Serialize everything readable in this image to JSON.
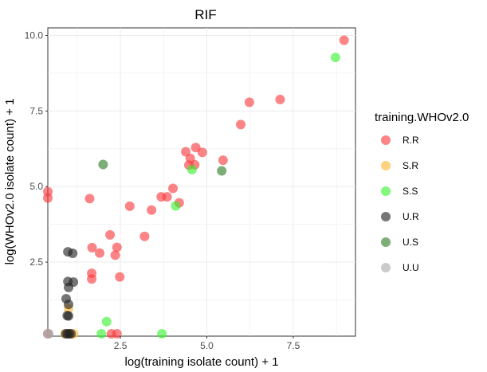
{
  "chart_data": {
    "type": "scatter",
    "title": "RIF",
    "xlabel": "log(training isolate count) + 1",
    "ylabel": "log(WHOv2.0 isolate count) + 1",
    "xlim": [
      0.4,
      9.3
    ],
    "ylim": [
      0.05,
      10.25
    ],
    "x_ticks": [
      2.5,
      5.0,
      7.5
    ],
    "y_ticks": [
      2.5,
      5.0,
      7.5,
      10.0
    ],
    "x_tick_labels": [
      "2.5",
      "5.0",
      "7.5"
    ],
    "y_tick_labels": [
      "2.5",
      "5.0",
      "7.5",
      "10.0"
    ],
    "grid": true,
    "legend": {
      "title": "training.WHOv2.0",
      "placement": "right"
    },
    "series": [
      {
        "name": "R.R",
        "color": "#F8393B",
        "points": [
          [
            0.4,
            4.83
          ],
          [
            0.4,
            4.62
          ],
          [
            1.61,
            4.6
          ],
          [
            2.77,
            4.35
          ],
          [
            3.4,
            4.22
          ],
          [
            3.68,
            4.66
          ],
          [
            3.85,
            4.66
          ],
          [
            4.2,
            4.46
          ],
          [
            4.02,
            4.94
          ],
          [
            1.68,
            2.98
          ],
          [
            1.9,
            2.8
          ],
          [
            2.2,
            3.4
          ],
          [
            2.35,
            2.73
          ],
          [
            2.4,
            2.99
          ],
          [
            2.48,
            2.01
          ],
          [
            3.2,
            3.35
          ],
          [
            1.67,
            2.13
          ],
          [
            1.67,
            1.94
          ],
          [
            4.39,
            6.15
          ],
          [
            4.48,
            5.71
          ],
          [
            4.52,
            5.93
          ],
          [
            4.65,
            5.72
          ],
          [
            4.68,
            6.29
          ],
          [
            4.87,
            6.13
          ],
          [
            5.47,
            5.87
          ],
          [
            5.98,
            7.05
          ],
          [
            6.23,
            7.79
          ],
          [
            7.12,
            7.88
          ],
          [
            8.97,
            9.84
          ],
          [
            2.24,
            0.13
          ],
          [
            2.4,
            0.13
          ],
          [
            0.4,
            0.13
          ]
        ]
      },
      {
        "name": "S.R",
        "color": "#FFB636",
        "points": [
          [
            1.0,
            0.96
          ],
          [
            0.9,
            0.13
          ],
          [
            1.05,
            0.13
          ],
          [
            1.15,
            0.13
          ]
        ]
      },
      {
        "name": "S.S",
        "color": "#37F02F",
        "points": [
          [
            4.57,
            5.56
          ],
          [
            4.1,
            4.36
          ],
          [
            8.72,
            9.27
          ],
          [
            2.1,
            0.53
          ],
          [
            1.95,
            0.13
          ],
          [
            3.7,
            0.13
          ]
        ]
      },
      {
        "name": "U.R",
        "color": "#222222",
        "points": [
          [
            0.98,
            2.84
          ],
          [
            1.12,
            2.79
          ],
          [
            0.98,
            1.86
          ],
          [
            1.14,
            1.84
          ],
          [
            1.0,
            1.66
          ],
          [
            0.93,
            1.29
          ],
          [
            1.0,
            1.1
          ],
          [
            0.96,
            0.73
          ],
          [
            1.0,
            0.72
          ],
          [
            0.92,
            0.13
          ],
          [
            0.97,
            0.13
          ],
          [
            1.02,
            0.13
          ],
          [
            1.07,
            0.13
          ]
        ]
      },
      {
        "name": "U.S",
        "color": "#2E7D24",
        "points": [
          [
            2.0,
            5.73
          ],
          [
            5.43,
            5.52
          ]
        ]
      },
      {
        "name": "U.U",
        "color": "#AAAAAA",
        "points": [
          [
            0.4,
            0.13
          ],
          [
            0.43,
            0.13
          ]
        ]
      }
    ]
  }
}
